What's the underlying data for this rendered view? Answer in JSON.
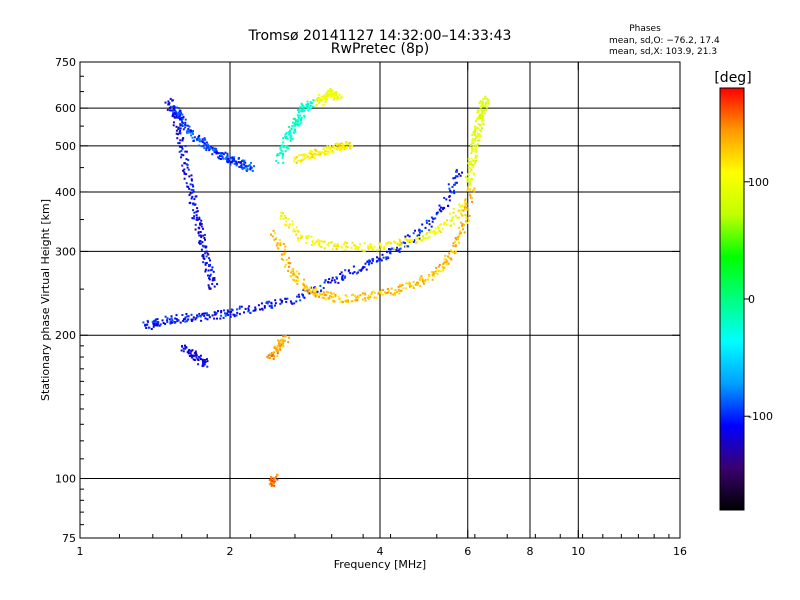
{
  "chart_data": {
    "type": "scatter",
    "title": "Tromsø 20141127 14:32:00–14:33:43",
    "subtitle": "RwPretec (8p)",
    "xlabel": "Frequency [MHz]",
    "ylabel": "Stationary phase Virtual Height [km]",
    "x_scale": "log",
    "y_scale": "log",
    "xlim": [
      1,
      16
    ],
    "ylim": [
      75,
      750
    ],
    "x_ticks": [
      1,
      2,
      4,
      6,
      8,
      10,
      16
    ],
    "y_ticks": [
      75,
      100,
      200,
      300,
      400,
      500,
      600,
      750
    ],
    "x_gridlines": [
      2,
      4,
      6,
      8,
      10
    ],
    "y_gridlines": [
      100,
      200,
      300,
      400,
      500,
      600
    ],
    "grid": true,
    "stats": {
      "heading": "Phases",
      "line1": "mean, sd,O: −76.2, 17.4",
      "line2": "mean, sd,X: 103.9, 21.3"
    },
    "colorbar": {
      "label": "[deg]",
      "ticks": [
        100,
        0,
        -100
      ],
      "range": [
        -180,
        180
      ],
      "colors": [
        "#000000",
        "#3a0070",
        "#0000ff",
        "#00a0ff",
        "#00ffff",
        "#00ff80",
        "#00ff00",
        "#c0ff00",
        "#ffff00",
        "#ff9900",
        "#ff0000"
      ]
    },
    "traces": [
      {
        "x": [
          1.55,
          1.6,
          1.7,
          1.8,
          1.9,
          2.0,
          2.1,
          2.2
        ],
        "y": [
          600,
          560,
          520,
          500,
          480,
          470,
          460,
          450
        ],
        "phase": -95
      },
      {
        "x": [
          1.5,
          1.55,
          1.6,
          1.65,
          1.7,
          1.75,
          1.8,
          1.85
        ],
        "y": [
          620,
          580,
          500,
          420,
          360,
          320,
          280,
          250
        ],
        "phase": -110
      },
      {
        "x": [
          1.35,
          1.45,
          1.6,
          1.8,
          2.0,
          2.3,
          2.7,
          3.2,
          3.7,
          4.2,
          4.8,
          5.4,
          5.8
        ],
        "y": [
          210,
          215,
          218,
          220,
          224,
          230,
          240,
          262,
          280,
          300,
          330,
          380,
          460
        ],
        "phase": -105
      },
      {
        "x": [
          2.45,
          2.6,
          2.8,
          3.0,
          3.3,
          3.7,
          4.2,
          4.7,
          5.2,
          5.6,
          5.9,
          6.1
        ],
        "y": [
          330,
          280,
          255,
          245,
          240,
          242,
          248,
          258,
          272,
          300,
          350,
          420
        ],
        "phase": 130
      },
      {
        "x": [
          2.5,
          2.8,
          3.2,
          3.7,
          4.2,
          4.8,
          5.4,
          5.9
        ],
        "y": [
          360,
          320,
          310,
          308,
          310,
          320,
          340,
          380
        ],
        "phase": 105
      },
      {
        "x": [
          6.0,
          6.1,
          6.2,
          6.3,
          6.4,
          6.5
        ],
        "y": [
          420,
          470,
          520,
          560,
          600,
          630
        ],
        "phase": 90
      },
      {
        "x": [
          2.7,
          2.9,
          3.1,
          3.3,
          3.5
        ],
        "y": [
          470,
          480,
          490,
          500,
          505
        ],
        "phase": 110
      },
      {
        "x": [
          3.0,
          3.1,
          3.2,
          3.3
        ],
        "y": [
          620,
          640,
          650,
          630
        ],
        "phase": 95
      },
      {
        "x": [
          2.5,
          2.6,
          2.7,
          2.8,
          2.9
        ],
        "y": [
          470,
          520,
          560,
          600,
          620
        ],
        "phase": -20
      },
      {
        "x": [
          2.4,
          2.5,
          2.6
        ],
        "y": [
          180,
          190,
          200
        ],
        "phase": 140
      },
      {
        "x": [
          1.6,
          1.7,
          1.8
        ],
        "y": [
          190,
          180,
          175
        ],
        "phase": -115
      },
      {
        "x": [
          2.4,
          2.45
        ],
        "y": [
          98,
          102
        ],
        "phase": 150
      }
    ]
  }
}
